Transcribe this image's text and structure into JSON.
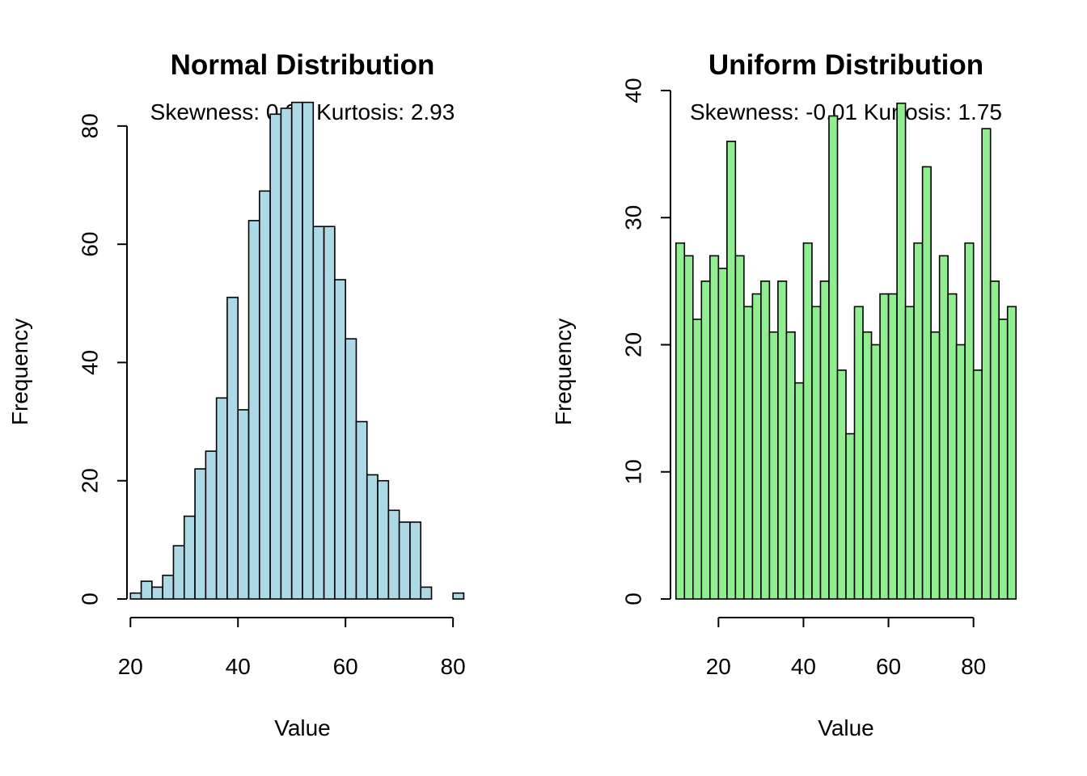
{
  "chart_data": [
    {
      "type": "bar",
      "title": "Normal Distribution",
      "subtitle": "Skewness: 0.07 Kurtosis: 2.93",
      "xlabel": "Value",
      "ylabel": "Frequency",
      "xlim": [
        18,
        86
      ],
      "ylim": [
        0,
        86
      ],
      "x_ticks": [
        20,
        40,
        60,
        80
      ],
      "y_ticks": [
        0,
        20,
        40,
        60,
        80
      ],
      "bin_start": 20,
      "bin_width": 2,
      "values": [
        1,
        3,
        2,
        4,
        9,
        14,
        22,
        25,
        34,
        51,
        32,
        64,
        69,
        82,
        83,
        84,
        84,
        63,
        63,
        54,
        44,
        30,
        21,
        20,
        15,
        13,
        13,
        2,
        0,
        0,
        1
      ],
      "colors": {
        "fill": "#add8e6",
        "stroke": "#000000"
      },
      "grid": false
    },
    {
      "type": "bar",
      "title": "Uniform Distribution",
      "subtitle": "Skewness: -0.01 Kurtosis: 1.75",
      "xlabel": "Value",
      "ylabel": "Frequency",
      "xlim": [
        7,
        93
      ],
      "ylim": [
        0,
        40
      ],
      "x_ticks": [
        20,
        40,
        60,
        80
      ],
      "y_ticks": [
        0,
        10,
        20,
        30,
        40
      ],
      "bin_start": 10,
      "bin_width": 2,
      "values": [
        28,
        27,
        22,
        25,
        27,
        26,
        36,
        27,
        23,
        24,
        25,
        21,
        25,
        21,
        17,
        28,
        23,
        25,
        38,
        18,
        13,
        23,
        21,
        20,
        24,
        24,
        39,
        23,
        28,
        34,
        21,
        27,
        24,
        20,
        28,
        18,
        37,
        25,
        22,
        23
      ],
      "colors": {
        "fill": "#90ee90",
        "stroke": "#000000"
      },
      "grid": false
    }
  ]
}
